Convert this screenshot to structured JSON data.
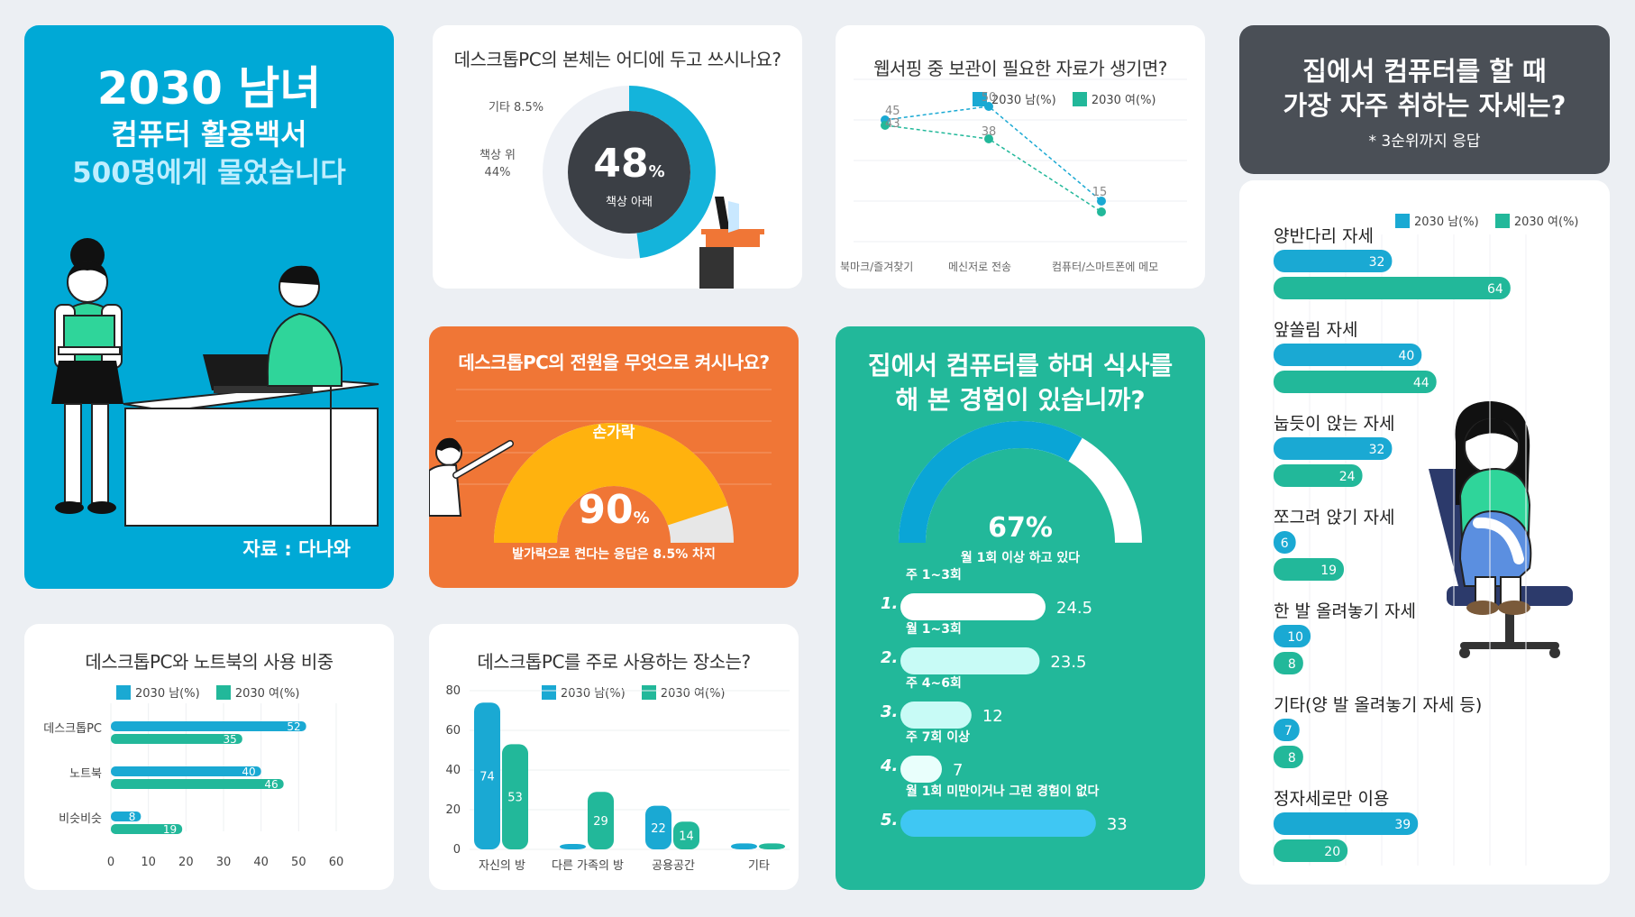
{
  "colors": {
    "male": "#1aa9d3",
    "female": "#22b89a",
    "cyan": "#00a9d6",
    "orange": "#f07636",
    "teal": "#22b89a",
    "dark": "#4a4f56",
    "gauge": "#ffb20e"
  },
  "intro": {
    "title": "2030 남녀",
    "subtitle": "컴퓨터 활용백서",
    "asked": "500명에게 물었습니다",
    "source": "자료 : 다나와"
  },
  "location": {
    "title": "데스크톱PC의 본체는 어디에 두고 쓰시나요?",
    "center_value": "48",
    "center_unit": "%",
    "center_label": "책상 아래",
    "label_other": "기타  8.5%",
    "label_desk_top_1": "책상 위",
    "label_desk_top_2": "44%"
  },
  "bookmark": {
    "title": "웹서핑 중 보관이 필요한 자료가 생기면?"
  },
  "power": {
    "title": "데스크톱PC의 전원을 무엇으로 켜시나요?",
    "gauge_label": "손가락",
    "value": "90",
    "unit": "%",
    "note": "발가락으로 켠다는 응답은 8.5% 차지"
  },
  "meal": {
    "title_1": "집에서 컴퓨터를 하며 식사를",
    "title_2": "해 본 경험이 있습니까?",
    "gauge_value": "67%",
    "gauge_label": "월 1회 이상 하고 있다"
  },
  "posture": {
    "title_1": "집에서 컴퓨터를 할 때",
    "title_2": "가장 자주 취하는 자세는?",
    "note": "* 3순위까지 응답"
  },
  "legend": {
    "male": "2030 남(%)",
    "female": "2030 여(%)"
  },
  "chart_data": [
    {
      "id": "desktop_location",
      "type": "pie",
      "title": "데스크톱PC의 본체는 어디에 두고 쓰시나요?",
      "categories": [
        "책상 아래",
        "책상 위",
        "기타"
      ],
      "values": [
        48,
        44,
        8.5
      ]
    },
    {
      "id": "bookmark",
      "type": "line",
      "title": "웹서핑 중 보관이 필요한 자료가 생기면?",
      "categories": [
        "북마크/즐겨찾기",
        "메신저로 전송",
        "컴퓨터/스마트폰에 메모"
      ],
      "series": [
        {
          "name": "2030 남(%)",
          "values": [
            45,
            50,
            15
          ]
        },
        {
          "name": "2030 여(%)",
          "values": [
            43,
            38,
            11
          ]
        }
      ],
      "data_labels": [
        "45",
        "43",
        "50",
        "38",
        "15"
      ],
      "ylim": [
        0,
        60
      ]
    },
    {
      "id": "power",
      "type": "pie",
      "title": "데스크톱PC의 전원을 무엇으로 켜시나요?",
      "categories": [
        "손가락",
        "발가락"
      ],
      "values": [
        90,
        8.5
      ]
    },
    {
      "id": "meal",
      "type": "bar",
      "title": "집에서 컴퓨터를 하며 식사를 해 본 경험이 있습니까?",
      "ranks": [
        "1.",
        "2.",
        "3.",
        "4.",
        "5."
      ],
      "categories": [
        "주 1~3회",
        "월 1~3회",
        "주 4~6회",
        "주 7회 이상",
        "월 1회 미만이거나 그런 경험이 없다"
      ],
      "values": [
        24.5,
        23.5,
        12,
        7,
        33
      ],
      "xlim": [
        0,
        35
      ],
      "summary_value": 67
    },
    {
      "id": "posture",
      "type": "bar",
      "title": "집에서 컴퓨터를 할 때 가장 자주 취하는 자세는?",
      "categories": [
        "양반다리 자세",
        "앞쏠림 자세",
        "눕듯이 앉는 자세",
        "쪼그려 앉기 자세",
        "한 발 올려놓기 자세",
        "기타(양 발 올려놓기 자세 등)",
        "정자세로만 이용"
      ],
      "series": [
        {
          "name": "2030 남(%)",
          "values": [
            32,
            40,
            32,
            6,
            10,
            7,
            39
          ]
        },
        {
          "name": "2030 여(%)",
          "values": [
            64,
            44,
            24,
            19,
            8,
            8,
            20
          ]
        }
      ],
      "xlim": [
        0,
        75
      ]
    },
    {
      "id": "device_share",
      "type": "bar",
      "title": "데스크톱PC와 노트북의 사용 비중",
      "categories": [
        "데스크톱PC",
        "노트북",
        "비슷비슷"
      ],
      "series": [
        {
          "name": "2030 남(%)",
          "values": [
            52,
            40,
            8
          ]
        },
        {
          "name": "2030 여(%)",
          "values": [
            35,
            46,
            19
          ]
        }
      ],
      "xlim": [
        0,
        60
      ],
      "xticks": [
        0,
        10,
        20,
        30,
        40,
        50,
        60
      ]
    },
    {
      "id": "place",
      "type": "bar",
      "title": "데스크톱PC를 주로 사용하는 장소는?",
      "categories": [
        "자신의 방",
        "다른 가족의 방",
        "공용공간",
        "기타"
      ],
      "series": [
        {
          "name": "2030 남(%)",
          "values": [
            74,
            1,
            22,
            3
          ]
        },
        {
          "name": "2030 여(%)",
          "values": [
            53,
            29,
            14,
            3
          ]
        }
      ],
      "data_labels": [
        [
          "74",
          "",
          "22",
          ""
        ],
        [
          "53",
          "29",
          "14",
          ""
        ]
      ],
      "ylim": [
        0,
        80
      ],
      "yticks": [
        0,
        20,
        40,
        60,
        80
      ]
    }
  ]
}
